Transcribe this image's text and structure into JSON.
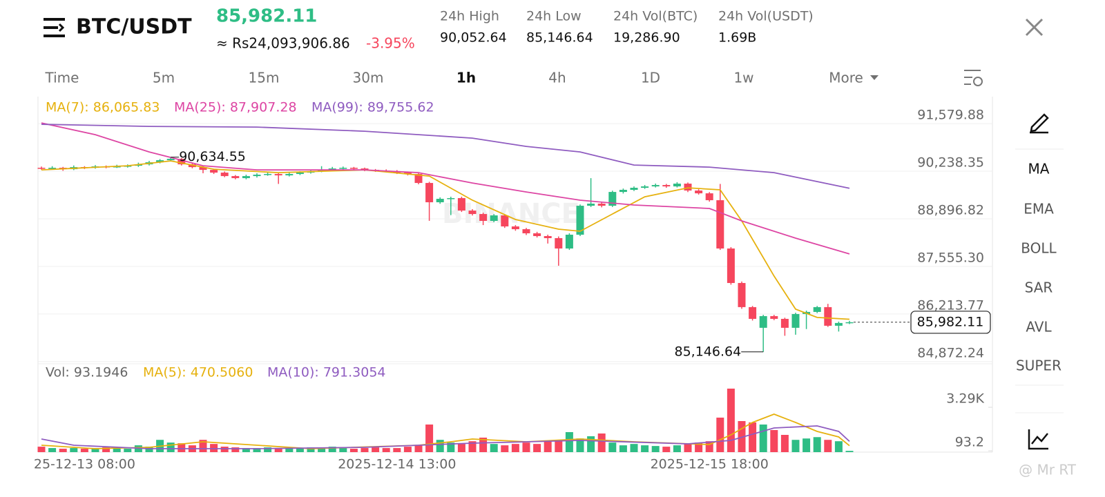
{
  "header": {
    "pair": "BTC/USDT",
    "price": "85,982.11",
    "fiat": "≈ Rs24,093,906.86",
    "change": "-3.95%",
    "stats": [
      {
        "label": "24h High",
        "value": "90,052.64"
      },
      {
        "label": "24h Low",
        "value": "85,146.64"
      },
      {
        "label": "24h Vol(BTC)",
        "value": "19,286.90"
      },
      {
        "label": "24h Vol(USDT)",
        "value": "1.69B"
      }
    ]
  },
  "timeframes": [
    "Time",
    "5m",
    "15m",
    "30m",
    "1h",
    "4h",
    "1D",
    "1w",
    "More"
  ],
  "active_timeframe": "1h",
  "indicators": [
    "MA",
    "EMA",
    "BOLL",
    "SAR",
    "AVL",
    "SUPER"
  ],
  "active_indicator": "MA",
  "logo": "BINANCE",
  "watermark": "@ Mr RT",
  "chart_data": {
    "type": "candlestick",
    "up_color": "#2ebd85",
    "down_color": "#f6465d",
    "grid": true,
    "ylim": [
      84850,
      92340
    ],
    "yticks": [
      {
        "value": 91579.88,
        "label": "91,579.88"
      },
      {
        "value": 90238.35,
        "label": "90,238.35"
      },
      {
        "value": 88896.82,
        "label": "88,896.82"
      },
      {
        "value": 87555.3,
        "label": "87,555.30"
      },
      {
        "value": 86213.77,
        "label": "86,213.77"
      },
      {
        "value": 84872.24,
        "label": "84,872.24"
      }
    ],
    "categories": [
      null,
      null,
      null,
      null,
      "25-12-13 08:00",
      null,
      null,
      null,
      null,
      null,
      null,
      null,
      null,
      null,
      null,
      null,
      null,
      null,
      null,
      null,
      null,
      null,
      null,
      null,
      null,
      null,
      null,
      null,
      null,
      null,
      null,
      null,
      null,
      "2025-12-14 13:00",
      null,
      null,
      null,
      null,
      null,
      null,
      null,
      null,
      null,
      null,
      null,
      null,
      null,
      null,
      null,
      null,
      null,
      null,
      null,
      null,
      null,
      null,
      null,
      null,
      null,
      null,
      null,
      null,
      "2025-12-15 18:00",
      null,
      null,
      null,
      null,
      null,
      null,
      null,
      null,
      null,
      null,
      null,
      null,
      null
    ],
    "candles": [
      [
        90335,
        90370,
        90280,
        90315
      ],
      [
        90315,
        90380,
        90290,
        90335
      ],
      [
        90335,
        90360,
        90250,
        90296
      ],
      [
        90296,
        90400,
        90270,
        90354
      ],
      [
        90354,
        90380,
        90300,
        90335
      ],
      [
        90335,
        90410,
        90310,
        90374
      ],
      [
        90374,
        90400,
        90320,
        90354
      ],
      [
        90354,
        90420,
        90330,
        90374
      ],
      [
        90374,
        90430,
        90340,
        90393
      ],
      [
        90393,
        90480,
        90360,
        90432
      ],
      [
        90432,
        90530,
        90400,
        90490
      ],
      [
        90490,
        90580,
        90460,
        90548
      ],
      [
        90548,
        90634.55,
        90520,
        90587
      ],
      [
        90587,
        90610,
        90400,
        90432
      ],
      [
        90432,
        90460,
        90320,
        90354
      ],
      [
        90354,
        90380,
        90180,
        90276
      ],
      [
        90276,
        90300,
        90160,
        90199
      ],
      [
        90199,
        90230,
        90070,
        90101
      ],
      [
        90101,
        90130,
        90010,
        90043
      ],
      [
        90043,
        90140,
        90010,
        90101
      ],
      [
        90101,
        90180,
        90060,
        90140
      ],
      [
        90140,
        90200,
        90110,
        90160
      ],
      [
        90160,
        90190,
        89880,
        90121
      ],
      [
        90121,
        90200,
        90090,
        90160
      ],
      [
        90160,
        90240,
        90130,
        90199
      ],
      [
        90199,
        90280,
        90170,
        90237
      ],
      [
        90237,
        90380,
        90210,
        90276
      ],
      [
        90276,
        90360,
        90250,
        90315
      ],
      [
        90315,
        90370,
        90290,
        90335
      ],
      [
        90335,
        90360,
        90280,
        90315
      ],
      [
        90315,
        90340,
        90240,
        90276
      ],
      [
        90276,
        90300,
        90220,
        90257
      ],
      [
        90257,
        90290,
        90200,
        90237
      ],
      [
        90237,
        90270,
        90160,
        90199
      ],
      [
        90199,
        90230,
        90120,
        90160
      ],
      [
        90160,
        90190,
        89870,
        89907
      ],
      [
        89907,
        89940,
        88840,
        89363
      ],
      [
        89363,
        89500,
        89320,
        89460
      ],
      [
        89460,
        89520,
        89000,
        89480
      ],
      [
        89480,
        89520,
        89090,
        89129
      ],
      [
        89129,
        89170,
        88990,
        89032
      ],
      [
        89032,
        89070,
        88720,
        88838
      ],
      [
        88838,
        89030,
        88800,
        88993
      ],
      [
        88993,
        89030,
        88640,
        88682
      ],
      [
        88682,
        88720,
        88560,
        88604
      ],
      [
        88604,
        88640,
        88440,
        88488
      ],
      [
        88488,
        88530,
        88370,
        88410
      ],
      [
        88410,
        88450,
        88200,
        88352
      ],
      [
        88352,
        88400,
        87574,
        88060
      ],
      [
        88060,
        88490,
        88020,
        88449
      ],
      [
        88449,
        89300,
        88410,
        89265
      ],
      [
        89265,
        90043,
        89230,
        89324
      ],
      [
        89324,
        89360,
        89220,
        89265
      ],
      [
        89265,
        89690,
        89230,
        89654
      ],
      [
        89654,
        89750,
        89610,
        89713
      ],
      [
        89713,
        89810,
        89680,
        89771
      ],
      [
        89771,
        89850,
        89740,
        89810
      ],
      [
        89810,
        89890,
        89780,
        89849
      ],
      [
        89849,
        89880,
        89770,
        89810
      ],
      [
        89810,
        89930,
        89780,
        89888
      ],
      [
        89888,
        89920,
        89650,
        89694
      ],
      [
        89694,
        89730,
        89580,
        89615
      ],
      [
        89615,
        89650,
        89380,
        89421
      ],
      [
        89421,
        89880,
        88020,
        88060
      ],
      [
        88060,
        88100,
        87040,
        87088
      ],
      [
        87088,
        87130,
        86360,
        86408
      ],
      [
        86408,
        86440,
        86030,
        86077
      ],
      [
        85825,
        86190,
        85146.64,
        86155
      ],
      [
        86155,
        86190,
        86040,
        86077
      ],
      [
        86077,
        86110,
        85600,
        85825
      ],
      [
        85825,
        86250,
        85630,
        86213
      ],
      [
        86213,
        86310,
        85790,
        86272
      ],
      [
        86272,
        86440,
        86240,
        86408
      ],
      [
        86408,
        86500,
        85850,
        85883
      ],
      [
        85883,
        86000,
        85720,
        85961
      ],
      [
        85961,
        86020,
        85930,
        85982.11
      ]
    ],
    "series": [
      {
        "name": "MA(7): 86,065.83",
        "color": "#e6b10e",
        "x": [
          0,
          8,
          12,
          16,
          22,
          30,
          36,
          40,
          44,
          48,
          50,
          53,
          56,
          60,
          63,
          65,
          68,
          70,
          72,
          75
        ],
        "values": [
          90276,
          90393,
          90529,
          90296,
          90199,
          90276,
          90101,
          89421,
          88877,
          88604,
          88546,
          89032,
          89518,
          89771,
          89713,
          88838,
          87283,
          86349,
          86116,
          86065.83
        ]
      },
      {
        "name": "MA(25): 87,907.28",
        "color": "#dd45a3",
        "x": [
          0,
          5,
          10,
          15,
          20,
          30,
          35,
          40,
          45,
          50,
          55,
          62,
          65,
          70,
          75
        ],
        "values": [
          91598,
          91268,
          90782,
          90393,
          90276,
          90276,
          90199,
          89907,
          89654,
          89421,
          89285,
          89188,
          88838,
          88352,
          87907.28
        ]
      },
      {
        "name": "MA(99): 89,755.62",
        "color": "#8f5cc0",
        "x": [
          0,
          10,
          20,
          30,
          40,
          45,
          50,
          55,
          62,
          68,
          75
        ],
        "values": [
          91559,
          91501,
          91482,
          91365,
          91171,
          90937,
          90782,
          90412,
          90354,
          90199,
          89755.62
        ]
      }
    ],
    "annotations": [
      {
        "text": "90,634.55",
        "value": 90634.55
      },
      {
        "text": "85,146.64",
        "value": 85146.64
      }
    ],
    "volume": {
      "label": "Vol: 93.1946",
      "ylim": [
        0,
        6325
      ],
      "yticks": [
        {
          "value": 3290,
          "label": "3.29K"
        },
        93.2
      ],
      "values": [
        400,
        300,
        250,
        300,
        250,
        300,
        350,
        300,
        250,
        500,
        400,
        900,
        700,
        650,
        500,
        900,
        600,
        400,
        350,
        300,
        300,
        350,
        250,
        300,
        300,
        350,
        300,
        400,
        300,
        250,
        300,
        350,
        300,
        300,
        400,
        500,
        2024,
        900,
        700,
        600,
        800,
        1063,
        600,
        500,
        600,
        700,
        600,
        800,
        900,
        1467,
        1000,
        1164,
        1366,
        700,
        500,
        600,
        500,
        450,
        400,
        500,
        600,
        700,
        800,
        2530,
        4656,
        2277,
        2176,
        2024,
        1619,
        1265,
        900,
        1000,
        1100,
        900,
        800,
        93.1946
      ],
      "series": [
        {
          "name": "MA(5): 470.5060",
          "color": "#e6b10e",
          "x": [
            0,
            5,
            10,
            15,
            25,
            35,
            38,
            40,
            45,
            50,
            55,
            62,
            64,
            66,
            68,
            70,
            72,
            74,
            75
          ],
          "values": [
            506,
            253,
            354,
            759,
            253,
            506,
            759,
            962,
            759,
            962,
            759,
            556,
            1265,
            2176,
            2783,
            2176,
            1518,
            1113,
            470.506
          ]
        },
        {
          "name": "MA(10): 791.3054",
          "color": "#8f5cc0",
          "x": [
            0,
            3,
            10,
            20,
            30,
            40,
            50,
            60,
            64,
            68,
            72,
            74,
            75
          ],
          "values": [
            962,
            506,
            253,
            253,
            354,
            658,
            860,
            607,
            860,
            1771,
            1923,
            1518,
            791.3054
          ]
        }
      ]
    }
  }
}
